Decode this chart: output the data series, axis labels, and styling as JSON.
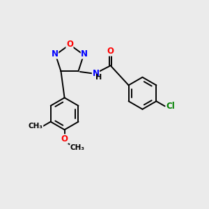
{
  "bg_color": "#ebebeb",
  "bond_color": "#000000",
  "atom_colors": {
    "O": "#ff0000",
    "N": "#0000ff",
    "Cl": "#008000",
    "C": "#000000",
    "H": "#000000"
  },
  "figsize": [
    3.0,
    3.0
  ],
  "dpi": 100,
  "lw": 1.4,
  "fs": 8.5,
  "xlim": [
    0,
    10
  ],
  "ylim": [
    0,
    10
  ]
}
